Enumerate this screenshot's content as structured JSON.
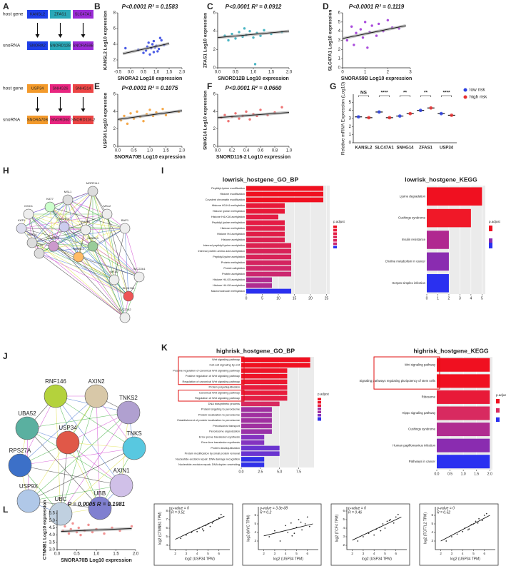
{
  "panel_labels": [
    "A",
    "B",
    "C",
    "D",
    "E",
    "F",
    "G",
    "H",
    "I",
    "J",
    "K",
    "L"
  ],
  "panel_a": {
    "row_labels": [
      "host gene",
      "snoRNA"
    ],
    "groups": [
      {
        "host": [
          {
            "name": "KANSL2",
            "color": "#1f3fe8"
          },
          {
            "name": "ZFAS1",
            "color": "#2aa8b8"
          },
          {
            "name": "SLC47A1",
            "color": "#9a2bd6"
          }
        ],
        "sno": [
          {
            "name": "SNORA2",
            "color": "#1f3fe8"
          },
          {
            "name": "SNORD12B",
            "color": "#2aa8b8"
          },
          {
            "name": "SNORA59B",
            "color": "#9a2bd6"
          }
        ]
      },
      {
        "host": [
          {
            "name": "USP34",
            "color": "#f39a2b"
          },
          {
            "name": "SNHG26",
            "color": "#e8257f"
          },
          {
            "name": "SNHG14",
            "color": "#ec4545"
          }
        ],
        "sno": [
          {
            "name": "SNORA70B",
            "color": "#f39a2b"
          },
          {
            "name": "SNORD60",
            "color": "#e8257f"
          },
          {
            "name": "SNORD116-2",
            "color": "#ec4545"
          }
        ]
      }
    ]
  },
  "network_h": {
    "nodes": [
      "MSL1",
      "MSL2",
      "MORF4L1",
      "KAT7",
      "OXIC1",
      "KAT5",
      "KANSL1",
      "KANSL2",
      "KANSL3",
      "KAT8",
      "BAP1",
      "SLC22A1",
      "SLC47A1",
      "NR1I2",
      "SLC22A2",
      "MCRS1",
      "PHF20",
      "KMT2A"
    ]
  },
  "network_j": {
    "nodes": [
      "RNF146",
      "AXIN2",
      "TNKS2",
      "UBA52",
      "USP34",
      "TNKS",
      "RPS27A",
      "AXIN1",
      "USP9X",
      "UBC",
      "UBB"
    ]
  },
  "chart_data": [
    {
      "type": "scatter",
      "title": "P<0.0001 R² = 0.1583",
      "xlabel": "SNORA2 Log10 expression",
      "ylabel": "KANSL2 Log10 expression",
      "color": "#2b3fe0",
      "xlim": [
        -0.5,
        2.0
      ],
      "xticks": [
        -0.5,
        {
          "value": 0,
          "label": "0.0"
        },
        0.5,
        {
          "value": 1,
          "label": "1.0"
        },
        1.5,
        {
          "value": 2,
          "label": "2.0"
        }
      ],
      "ylim": [
        1,
        8
      ],
      "yticks": [
        2,
        4,
        6,
        8
      ],
      "x": [
        -0.2,
        0.3,
        0.5,
        0.6,
        0.65,
        0.7,
        0.75,
        0.8,
        0.85,
        0.9,
        0.9,
        0.95,
        1.0,
        1.05,
        1.1,
        1.15,
        1.2,
        1.3
      ],
      "values": [
        3.5,
        3.3,
        2.9,
        3.2,
        3.7,
        4.2,
        2.7,
        3.5,
        4.0,
        3.0,
        4.4,
        3.6,
        3.8,
        3.1,
        3.4,
        4.8,
        4.5,
        3.9
      ],
      "fit": {
        "x": [
          -0.3,
          1.5
        ],
        "values": [
          2.8,
          4.1
        ]
      }
    },
    {
      "type": "scatter",
      "title": "P<0.0001 R² = 0.0912",
      "xlabel": "SNORD12B Log10 expression",
      "ylabel": "ZFAS1 Log10 expression",
      "color": "#2aa8b8",
      "xlim": [
        0,
        2
      ],
      "xticks": [
        {
          "value": 0,
          "label": "0.0"
        },
        0.5,
        {
          "value": 1,
          "label": "1.0"
        },
        1.5,
        {
          "value": 2,
          "label": "2.0"
        }
      ],
      "ylim": [
        0,
        6
      ],
      "yticks": [
        0,
        2,
        4,
        6
      ],
      "x": [
        0.2,
        0.3,
        0.4,
        0.5,
        0.6,
        0.7,
        0.75,
        0.8,
        0.9,
        1.0,
        1.05,
        1.1,
        1.2,
        1.3,
        1.5,
        1.8
      ],
      "values": [
        3.5,
        3.0,
        3.7,
        3.2,
        3.9,
        3.4,
        4.3,
        3.6,
        4.0,
        3.3,
        0.4,
        3.8,
        3.5,
        4.1,
        3.7,
        3.9
      ],
      "fit": {
        "x": [
          0,
          2
        ],
        "values": [
          3.3,
          4.0
        ]
      }
    },
    {
      "type": "scatter",
      "title": "P<0.0001 R² = 0.1119",
      "xlabel": "SNORA59B Log10 expression",
      "ylabel": "SLC47A1 Log10 expression",
      "color": "#9a2bd6",
      "xlim": [
        0,
        3
      ],
      "xticks": [
        0,
        1,
        2,
        3
      ],
      "ylim": [
        0,
        6
      ],
      "yticks": [
        0,
        1,
        2,
        3,
        4,
        5,
        6
      ],
      "x": [
        0.2,
        0.4,
        0.5,
        0.6,
        0.8,
        0.9,
        1.0,
        1.1,
        1.2,
        1.3,
        1.5,
        1.6,
        1.8,
        2.0,
        2.2,
        2.5
      ],
      "values": [
        3.0,
        4.5,
        2.5,
        3.8,
        4.2,
        3.3,
        5.0,
        2.2,
        3.9,
        4.6,
        3.5,
        4.8,
        4.0,
        5.2,
        4.4,
        4.3
      ],
      "fit": {
        "x": [
          0,
          2.8
        ],
        "values": [
          3.2,
          4.6
        ]
      }
    },
    {
      "type": "scatter",
      "title": "P<0.0001 R² = 0.1075",
      "xlabel": "SNORA70B Log10 expression",
      "ylabel": "USP34 Log10 expression",
      "color": "#f39a2b",
      "xlim": [
        0,
        2
      ],
      "xticks": [
        {
          "value": 0,
          "label": "0.0"
        },
        0.5,
        {
          "value": 1,
          "label": "1.0"
        },
        1.5,
        {
          "value": 2,
          "label": "2.0"
        }
      ],
      "ylim": [
        0,
        6
      ],
      "yticks": [
        0,
        2,
        4,
        6
      ],
      "x": [
        0.1,
        0.2,
        0.3,
        0.4,
        0.5,
        0.6,
        0.7,
        0.8,
        0.9,
        1.0,
        1.1,
        1.2,
        1.4,
        1.5,
        1.9
      ],
      "values": [
        3.0,
        3.5,
        2.6,
        3.8,
        3.2,
        4.0,
        3.4,
        2.9,
        3.7,
        4.2,
        3.5,
        3.9,
        4.3,
        3.6,
        4.0
      ],
      "fit": {
        "x": [
          0,
          2
        ],
        "values": [
          3.1,
          4.1
        ]
      }
    },
    {
      "type": "scatter",
      "title": "P<0.0001 R² = 0.0660",
      "xlabel": "SNORD116-2 Log10 expression",
      "ylabel": "SNHG14 Log10 expression",
      "color": "#ec5a5a",
      "xlim": [
        0,
        1
      ],
      "xticks": [
        {
          "value": 0,
          "label": "0.0"
        },
        0.2,
        0.4,
        0.6,
        0.8,
        {
          "value": 1,
          "label": "1.0"
        }
      ],
      "ylim": [
        0,
        6
      ],
      "yticks": [
        0,
        2,
        4,
        6
      ],
      "x": [
        0.05,
        0.1,
        0.15,
        0.2,
        0.25,
        0.3,
        0.35,
        0.4,
        0.45,
        0.5,
        0.55,
        0.6,
        0.7,
        0.8,
        0.9
      ],
      "values": [
        3.3,
        3.6,
        2.9,
        3.4,
        3.8,
        3.2,
        3.5,
        4.0,
        3.1,
        3.7,
        3.5,
        4.2,
        3.6,
        3.9,
        4.5
      ],
      "fit": {
        "x": [
          0,
          1
        ],
        "values": [
          3.3,
          3.9
        ]
      }
    },
    {
      "type": "dot",
      "ylabel": "Relative mRNA Expression (Log10)",
      "categories": [
        "KANSL2",
        "SLC47A1",
        "SNHG14",
        "ZFAS1",
        "USP34"
      ],
      "series": [
        {
          "name": "low risk",
          "color": "#2b3fe0",
          "values": [
            3.2,
            3.8,
            3.3,
            4.0,
            3.6
          ]
        },
        {
          "name": "high risk",
          "color": "#e83030",
          "values": [
            3.1,
            3.1,
            3.6,
            4.3,
            3.4
          ]
        }
      ],
      "annotations": [
        "NS",
        "****",
        "**",
        "**",
        "****"
      ],
      "ylim": [
        0,
        6
      ],
      "yticks": [
        0,
        1,
        2,
        3,
        4,
        5
      ]
    },
    {
      "type": "barh",
      "title": "lowrisk_hostgene_GO_BP",
      "legend_title": "p.adjust",
      "categories": [
        "Peptidyl-lysine modification",
        "Histone modification",
        "Covalent chromatin modification",
        "Histone H3-K4 methylation",
        "Histone lysine methylation",
        "Histone H4-K16 acetylation",
        "Peptidyl-lysine methylation",
        "Histone methylation",
        "Histone H4 acetylation",
        "Histone acetylation",
        "Internal peptidyl-lysine acetylation",
        "Internal protein amino acid acetylation",
        "Peptidyl-lysine acetylation",
        "Protein methylation",
        "Protein alkylation",
        "Protein acetylation",
        "Histone H4-K5 acetylation",
        "Histone H4-K8 acetylation",
        "Macromolecule methylation"
      ],
      "values": [
        24,
        24,
        24,
        12,
        12,
        10,
        12,
        12,
        12,
        12,
        14,
        14,
        14,
        14,
        14,
        14,
        8,
        8,
        14
      ],
      "colors": [
        "#f01020",
        "#f01020",
        "#f01020",
        "#e81838",
        "#e81838",
        "#e41c44",
        "#e41c44",
        "#e01e48",
        "#e01e48",
        "#dc2050",
        "#dc2050",
        "#d82258",
        "#d82258",
        "#d42460",
        "#d02668",
        "#cc2870",
        "#b02c90",
        "#b02c90",
        "#2a30f0"
      ],
      "xlim": [
        0,
        26
      ],
      "xticks": [
        0,
        5,
        10,
        15,
        20,
        25
      ]
    },
    {
      "type": "barh",
      "title": "lowrisk_hostgene_KEGG",
      "legend_title": "p.adjust",
      "categories": [
        "Lysine degradation",
        "Cushings syndrome",
        "Insulin resistance",
        "Choline metabolism in cancer",
        "Herpes simplex infection"
      ],
      "values": [
        5,
        4,
        2,
        2,
        2
      ],
      "colors": [
        "#f01020",
        "#f01828",
        "#b02890",
        "#8a2cb0",
        "#2a30f0"
      ],
      "xlim": [
        0,
        5.3
      ],
      "xticks": [
        0,
        1,
        2,
        3,
        4,
        5
      ]
    },
    {
      "type": "barh",
      "title": "highrisk_hostgene_GO_BP",
      "legend_title": "p.adjust",
      "categories": [
        "Wnt signaling pathway",
        "Cell-cell signaling by wnt",
        "Positive regulation of canonical Wnt signaling pathway",
        "Positive regulation of Wnt signaling pathway",
        "Regulation of canonical Wnt signaling pathway",
        "Protein polyubiquitination",
        "Canonical Wnt signaling pathway",
        "Regulation of Wnt signaling pathway",
        "DNA biosynthetic process",
        "Protein targeting to peroxisome",
        "Protein localization to peroxisome",
        "Establishment of protein localization to peroxisome",
        "Peroxisomal transport",
        "Peroxisome organization",
        "Error-prone translesion synthesis",
        "Error-free translesion synthesis",
        "Protein deubiquitination",
        "Protein modification by small protein removal",
        "Nucleotide-excision repair, DNA damage recognition",
        "Nucleotide-excision repair, DNA duplex unwinding"
      ],
      "values": [
        9,
        9,
        6,
        6,
        6,
        6,
        6,
        6,
        5,
        4,
        4,
        4,
        4,
        4,
        3,
        3,
        5,
        5,
        3,
        3
      ],
      "colors": [
        "#f01020",
        "#f01020",
        "#ee1428",
        "#ee1428",
        "#ec1830",
        "#e81c3c",
        "#e81c3c",
        "#e41e44",
        "#d82a60",
        "#a030a0",
        "#a030a0",
        "#a030a0",
        "#a030a0",
        "#9a32a8",
        "#8432c0",
        "#8432c0",
        "#6a34d0",
        "#6a34d0",
        "#3030e8",
        "#3030e8"
      ],
      "xlim": [
        0,
        9.5
      ],
      "xticks": [
        {
          "value": 0,
          "label": "0.0"
        },
        2.5,
        {
          "value": 5,
          "label": "5.0"
        },
        7.5
      ]
    },
    {
      "type": "barh",
      "title": "highrisk_hostgene_KEGG",
      "legend_title": "p.adjust",
      "categories": [
        "Wnt signaling pathway",
        "Signaling pathways regulating pluripotency of stem cells",
        "Ribosome",
        "Hippo signaling pathway",
        "Cushings syndrome",
        "Human papillomavirus infection",
        "Pathways in cancer"
      ],
      "values": [
        2,
        2,
        2,
        2,
        2,
        2,
        2
      ],
      "colors": [
        "#f01020",
        "#f01020",
        "#e81a38",
        "#d82a60",
        "#b02c90",
        "#8a2cb0",
        "#2a30f0"
      ],
      "xlim": [
        0,
        2.1
      ],
      "xticks": [
        {
          "value": 0,
          "label": "0.0"
        },
        0.5,
        {
          "value": 1,
          "label": "1.0"
        },
        1.5,
        {
          "value": 2,
          "label": "2.0"
        }
      ]
    },
    {
      "type": "scatter",
      "title": "P = 0.0005 R = 0.1981",
      "xlabel": "SNORA70B Log10 expression",
      "ylabel": "CTNNB1 Log10 expression",
      "color": "#f08080",
      "xlim": [
        0,
        2
      ],
      "xticks": [
        {
          "value": 0,
          "label": "0.0"
        },
        0.5,
        {
          "value": 1,
          "label": "1.0"
        },
        1.5,
        {
          "value": 2,
          "label": "2.0"
        }
      ],
      "ylim": [
        3,
        5.7
      ],
      "yticks": [
        {
          "value": 3,
          "label": "3.0"
        },
        3.5,
        {
          "value": 4,
          "label": "4.0"
        },
        4.5,
        {
          "value": 5,
          "label": "5.0"
        },
        5.5
      ],
      "x": [
        0.15,
        0.2,
        0.3,
        0.35,
        0.4,
        0.5,
        0.55,
        0.6,
        0.7,
        0.8,
        0.9,
        1.0,
        1.2,
        1.4,
        1.6,
        1.9
      ],
      "values": [
        4.3,
        4.6,
        4.1,
        4.4,
        4.8,
        4.2,
        4.5,
        4.0,
        4.3,
        4.7,
        4.2,
        4.4,
        4.1,
        4.5,
        4.3,
        4.6
      ],
      "fit": {
        "x": [
          0.1,
          1.9
        ],
        "values": [
          4.25,
          4.45
        ]
      }
    },
    {
      "type": "gepia",
      "title": "p-value = 0",
      "subtitle": "R = 0.51",
      "xlabel": "log2 (USP34 TPM)",
      "ylabel": "log2 (CTNNB1 TPM)",
      "color": "#111",
      "xlim": [
        1.5,
        7
      ],
      "xticks": [
        2,
        3,
        4,
        5,
        6
      ],
      "ylim": [
        3.5,
        8.5
      ],
      "yticks": [
        4,
        5,
        6,
        7,
        8
      ],
      "x": [
        2.5,
        3,
        3.5,
        4,
        4.2,
        4.5,
        4.8,
        5,
        5.2,
        5.5,
        5.8,
        6,
        6.2,
        4.6,
        5.4
      ],
      "values": [
        4.8,
        5.2,
        5.5,
        5.6,
        6.0,
        5.9,
        6.3,
        6.5,
        6.2,
        6.8,
        7.0,
        7.2,
        7.6,
        5.7,
        6.6
      ],
      "fit": {
        "x": [
          2,
          6.5
        ],
        "values": [
          4.7,
          7.4
        ]
      }
    },
    {
      "type": "gepia",
      "title": "p-value = 3.3e-08",
      "subtitle": "R = 0.2",
      "xlabel": "log2 (USP34 TPM)",
      "ylabel": "log2 (MYC TPM)",
      "color": "#111",
      "xlim": [
        1.5,
        7
      ],
      "xticks": [
        2,
        3,
        4,
        5,
        6
      ],
      "ylim": [
        2,
        7
      ],
      "yticks": [
        3,
        4,
        5,
        6
      ],
      "x": [
        2.5,
        3,
        3.5,
        4,
        4.2,
        4.5,
        4.8,
        5,
        5.2,
        5.5,
        5.8,
        6,
        6.2,
        4.6,
        5.4
      ],
      "values": [
        3.5,
        4.2,
        3.0,
        4.8,
        4.0,
        5.1,
        3.9,
        4.6,
        5.5,
        4.3,
        5.0,
        5.8,
        4.7,
        3.6,
        5.2
      ],
      "fit": {
        "x": [
          2,
          6.5
        ],
        "values": [
          3.6,
          5.0
        ]
      }
    },
    {
      "type": "gepia",
      "title": "p-value = 0",
      "subtitle": "R = 0.46",
      "xlabel": "log2 (USP34 TPM)",
      "ylabel": "log2 (TCF4 TPM)",
      "color": "#111",
      "xlim": [
        1.5,
        7
      ],
      "xticks": [
        2,
        3,
        4,
        5,
        6
      ],
      "ylim": [
        1.5,
        6.5
      ],
      "yticks": [
        2,
        3,
        4,
        5,
        6
      ],
      "x": [
        2.5,
        3,
        3.5,
        4,
        4.2,
        4.5,
        4.8,
        5,
        5.2,
        5.5,
        5.8,
        6,
        6.2,
        4.6,
        5.4
      ],
      "values": [
        2.5,
        3.0,
        3.4,
        3.2,
        3.9,
        4.1,
        4.5,
        4.0,
        4.8,
        5.0,
        4.6,
        5.3,
        5.6,
        3.7,
        4.9
      ],
      "fit": {
        "x": [
          2,
          6.5
        ],
        "values": [
          2.6,
          5.3
        ]
      }
    },
    {
      "type": "gepia",
      "title": "p-value = 0",
      "subtitle": "R = 0.52",
      "xlabel": "log2 (USP34 TPM)",
      "ylabel": "log2 (TCF7L2 TPM)",
      "color": "#111",
      "xlim": [
        1.5,
        7
      ],
      "xticks": [
        2,
        3,
        4,
        5,
        6
      ],
      "ylim": [
        2,
        7
      ],
      "yticks": [
        3,
        4,
        5,
        6
      ],
      "x": [
        2.5,
        3,
        3.5,
        4,
        4.2,
        4.5,
        4.8,
        5,
        5.2,
        5.5,
        5.8,
        6,
        6.2,
        4.6,
        5.4
      ],
      "values": [
        3.0,
        3.5,
        3.8,
        4.1,
        4.5,
        4.3,
        4.9,
        5.0,
        5.3,
        5.6,
        5.4,
        6.0,
        6.2,
        4.4,
        5.1
      ],
      "fit": {
        "x": [
          2,
          6.5
        ],
        "values": [
          3.0,
          6.0
        ]
      }
    }
  ]
}
